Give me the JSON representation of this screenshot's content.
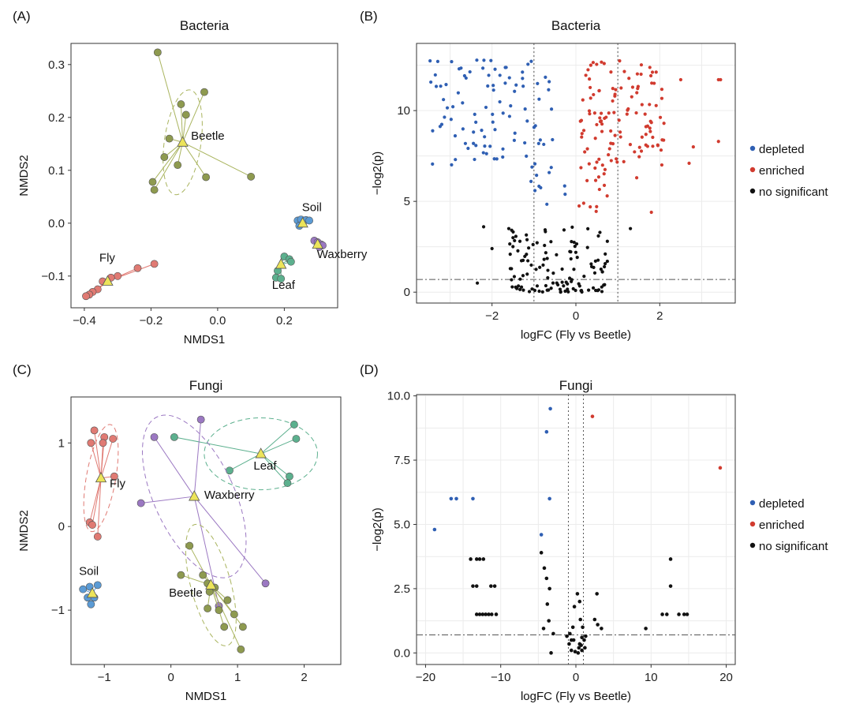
{
  "colors": {
    "beetle": "#8e9a4f",
    "beetle_line": "#a9b45e",
    "fly": "#e07a73",
    "soil": "#5b9bd5",
    "waxberry": "#9b78c2",
    "leaf": "#5cb08e",
    "centroid": "#ece45a",
    "depleted": "#2f5fb3",
    "enriched": "#d13b2f",
    "nosig": "#111111"
  },
  "panels": [
    {
      "id": "A",
      "label": "(A)",
      "chart_data": {
        "type": "scatter",
        "title": "Bacteria",
        "xlabel": "NMDS1",
        "ylabel": "NMDS2",
        "xlim": [
          -0.44,
          0.36
        ],
        "ylim": [
          -0.16,
          0.34
        ],
        "xticks": [
          -0.4,
          -0.2,
          0.0,
          0.2
        ],
        "xtick_labels": [
          "−0.4",
          "−0.2",
          "0.0",
          "0.2"
        ],
        "yticks": [
          -0.1,
          0.0,
          0.1,
          0.2,
          0.3
        ],
        "ytick_labels": [
          "−0.1",
          "0.0",
          "0.1",
          "0.2",
          "0.3"
        ],
        "groups": [
          {
            "name": "Beetle",
            "color_key": "beetle",
            "centroid": [
              -0.105,
              0.153
            ],
            "label_pos": [
              -0.08,
              0.158
            ],
            "ellipse": {
              "rx": 0.055,
              "ry": 0.1,
              "rot": 8
            },
            "points": [
              [
                -0.18,
                0.323
              ],
              [
                -0.11,
                0.225
              ],
              [
                -0.095,
                0.205
              ],
              [
                -0.04,
                0.248
              ],
              [
                -0.145,
                0.16
              ],
              [
                -0.16,
                0.125
              ],
              [
                -0.195,
                0.078
              ],
              [
                -0.19,
                0.063
              ],
              [
                -0.12,
                0.11
              ],
              [
                -0.035,
                0.087
              ],
              [
                0.1,
                0.088
              ]
            ]
          },
          {
            "name": "Fly",
            "color_key": "fly",
            "centroid": [
              -0.33,
              -0.11
            ],
            "label_pos": [
              -0.355,
              -0.073
            ],
            "ellipse": null,
            "points": [
              [
                -0.19,
                -0.077
              ],
              [
                -0.24,
                -0.085
              ],
              [
                -0.3,
                -0.1
              ],
              [
                -0.32,
                -0.103
              ],
              [
                -0.345,
                -0.11
              ],
              [
                -0.36,
                -0.125
              ],
              [
                -0.375,
                -0.13
              ],
              [
                -0.385,
                -0.135
              ],
              [
                -0.395,
                -0.138
              ]
            ]
          },
          {
            "name": "Soil",
            "color_key": "soil",
            "centroid": [
              0.255,
              0.0
            ],
            "label_pos": [
              0.253,
              0.023
            ],
            "ellipse": null,
            "points": [
              [
                0.24,
                0.005
              ],
              [
                0.25,
                0.007
              ],
              [
                0.265,
                0.006
              ],
              [
                0.275,
                0.005
              ],
              [
                0.245,
                -0.005
              ]
            ]
          },
          {
            "name": "Waxberry",
            "color_key": "waxberry",
            "centroid": [
              0.3,
              -0.04
            ],
            "label_pos": [
              0.298,
              -0.066
            ],
            "ellipse": null,
            "points": [
              [
                0.29,
                -0.033
              ],
              [
                0.3,
                -0.036
              ],
              [
                0.31,
                -0.04
              ],
              [
                0.305,
                -0.045
              ],
              [
                0.315,
                -0.042
              ]
            ]
          },
          {
            "name": "Leaf",
            "color_key": "leaf",
            "centroid": [
              0.19,
              -0.078
            ],
            "label_pos": [
              0.163,
              -0.124
            ],
            "ellipse": null,
            "points": [
              [
                0.2,
                -0.063
              ],
              [
                0.215,
                -0.068
              ],
              [
                0.22,
                -0.073
              ],
              [
                0.18,
                -0.09
              ],
              [
                0.175,
                -0.103
              ],
              [
                0.19,
                -0.105
              ]
            ]
          }
        ]
      }
    },
    {
      "id": "B",
      "label": "(B)",
      "chart_data": {
        "type": "scatter",
        "title": "Bacteria",
        "xlabel": "logFC (Fly vs Beetle)",
        "ylabel": "−log2(p)",
        "xlim": [
          -3.8,
          3.8
        ],
        "ylim": [
          -0.6,
          13.7
        ],
        "xticks": [
          -2,
          0,
          2
        ],
        "xtick_labels": [
          "−2",
          "0",
          "2"
        ],
        "yticks": [
          0,
          5,
          10
        ],
        "ytick_labels": [
          "0",
          "5",
          "10"
        ],
        "vlines": [
          -1,
          1
        ],
        "hline": 0.7,
        "legend": [
          "depleted",
          "enriched",
          "no significant"
        ],
        "legend_position": "right"
      }
    },
    {
      "id": "C",
      "label": "(C)",
      "chart_data": {
        "type": "scatter",
        "title": "Fungi",
        "xlabel": "NMDS1",
        "ylabel": "NMDS2",
        "xlim": [
          -1.5,
          2.55
        ],
        "ylim": [
          -1.65,
          1.55
        ],
        "xticks": [
          -1,
          0,
          1,
          2
        ],
        "xtick_labels": [
          "−1",
          "0",
          "1",
          "2"
        ],
        "yticks": [
          -1,
          0,
          1
        ],
        "ytick_labels": [
          "−1",
          "0",
          "1"
        ],
        "groups": [
          {
            "name": "Fly",
            "color_key": "fly",
            "centroid": [
              -1.05,
              0.58
            ],
            "label_pos": [
              -0.92,
              0.47
            ],
            "ellipse": {
              "rx": 0.22,
              "ry": 0.65,
              "rot": 10
            },
            "points": [
              [
                -1.15,
                1.15
              ],
              [
                -1.0,
                1.07
              ],
              [
                -0.87,
                1.05
              ],
              [
                -1.02,
                1.0
              ],
              [
                -1.2,
                1.0
              ],
              [
                -0.85,
                0.6
              ],
              [
                -1.22,
                0.05
              ],
              [
                -1.18,
                0.02
              ],
              [
                -1.1,
                -0.12
              ]
            ]
          },
          {
            "name": "Leaf",
            "color_key": "leaf",
            "centroid": [
              1.35,
              0.87
            ],
            "label_pos": [
              1.24,
              0.68
            ],
            "ellipse": {
              "rx": 0.85,
              "ry": 0.43,
              "rot": 0
            },
            "points": [
              [
                0.05,
                1.07
              ],
              [
                1.85,
                1.22
              ],
              [
                1.88,
                1.05
              ],
              [
                0.88,
                0.67
              ],
              [
                1.78,
                0.6
              ],
              [
                1.75,
                0.52
              ]
            ]
          },
          {
            "name": "Waxberry",
            "color_key": "waxberry",
            "centroid": [
              0.35,
              0.36
            ],
            "label_pos": [
              0.5,
              0.33
            ],
            "ellipse": {
              "rx": 0.6,
              "ry": 1.05,
              "rot": -25
            },
            "points": [
              [
                -0.25,
                1.07
              ],
              [
                0.45,
                1.28
              ],
              [
                -0.45,
                0.28
              ],
              [
                0.72,
                -0.95
              ],
              [
                1.42,
                -0.68
              ]
            ]
          },
          {
            "name": "Beetle",
            "color_key": "beetle",
            "centroid": [
              0.6,
              -0.7
            ],
            "label_pos": [
              -0.03,
              -0.84
            ],
            "ellipse": {
              "rx": 0.3,
              "ry": 0.75,
              "rot": -15
            },
            "points": [
              [
                0.28,
                -0.23
              ],
              [
                0.15,
                -0.58
              ],
              [
                0.48,
                -0.58
              ],
              [
                0.55,
                -0.68
              ],
              [
                0.66,
                -0.73
              ],
              [
                0.58,
                -0.78
              ],
              [
                0.85,
                -0.88
              ],
              [
                0.55,
                -0.98
              ],
              [
                0.72,
                -1.0
              ],
              [
                0.95,
                -1.05
              ],
              [
                0.8,
                -1.2
              ],
              [
                1.08,
                -1.2
              ],
              [
                1.05,
                -1.47
              ]
            ]
          },
          {
            "name": "Soil",
            "color_key": "soil",
            "centroid": [
              -1.18,
              -0.8
            ],
            "label_pos": [
              -1.38,
              -0.58
            ],
            "ellipse": null,
            "points": [
              [
                -1.32,
                -0.75
              ],
              [
                -1.22,
                -0.72
              ],
              [
                -1.1,
                -0.7
              ],
              [
                -1.25,
                -0.85
              ],
              [
                -1.15,
                -0.85
              ],
              [
                -1.2,
                -0.93
              ]
            ]
          }
        ]
      }
    },
    {
      "id": "D",
      "label": "(D)",
      "chart_data": {
        "type": "scatter",
        "title": "Fungi",
        "xlabel": "logFC (Fly vs Beetle)",
        "ylabel": "−log2(p)",
        "xlim": [
          -21.2,
          21.2
        ],
        "ylim": [
          -0.45,
          10.05
        ],
        "xticks": [
          -20,
          -10,
          0,
          10,
          20
        ],
        "xtick_labels": [
          "−20",
          "−10",
          "0",
          "10",
          "20"
        ],
        "yticks": [
          0,
          2.5,
          5,
          7.5,
          10
        ],
        "ytick_labels": [
          "0.0",
          "2.5",
          "5.0",
          "7.5",
          "10.0"
        ],
        "vlines": [
          -1,
          1
        ],
        "hline": 0.7,
        "legend": [
          "depleted",
          "enriched",
          "no significant"
        ],
        "legend_position": "right",
        "series": [
          {
            "name": "depleted",
            "color_key": "depleted",
            "points": [
              [
                -18.8,
                4.8
              ],
              [
                -16.6,
                6.0
              ],
              [
                -15.9,
                6.0
              ],
              [
                -13.7,
                6.0
              ],
              [
                -3.5,
                6.0
              ],
              [
                -3.9,
                8.6
              ],
              [
                -3.4,
                9.5
              ],
              [
                -4.6,
                4.6
              ]
            ]
          },
          {
            "name": "enriched",
            "color_key": "enriched",
            "points": [
              [
                2.2,
                9.2
              ],
              [
                19.2,
                7.2
              ]
            ]
          },
          {
            "name": "no significant",
            "color_key": "nosig",
            "points": [
              [
                -14.0,
                3.65
              ],
              [
                -13.2,
                3.65
              ],
              [
                -12.8,
                3.65
              ],
              [
                -12.3,
                3.65
              ],
              [
                -13.7,
                2.6
              ],
              [
                -13.2,
                2.6
              ],
              [
                -11.3,
                2.6
              ],
              [
                -10.8,
                2.6
              ],
              [
                -13.2,
                1.5
              ],
              [
                -12.8,
                1.5
              ],
              [
                -12.4,
                1.5
              ],
              [
                -12.0,
                1.5
              ],
              [
                -11.6,
                1.5
              ],
              [
                -11.2,
                1.5
              ],
              [
                -10.6,
                1.5
              ],
              [
                -4.6,
                3.9
              ],
              [
                -4.2,
                3.3
              ],
              [
                -3.9,
                2.9
              ],
              [
                -3.5,
                2.5
              ],
              [
                -3.8,
                1.9
              ],
              [
                -3.6,
                1.25
              ],
              [
                -4.3,
                0.95
              ],
              [
                -3.0,
                0.75
              ],
              [
                -3.3,
                0.0
              ],
              [
                -1.2,
                0.65
              ],
              [
                -0.8,
                0.75
              ],
              [
                -0.6,
                0.5
              ],
              [
                -0.9,
                0.35
              ],
              [
                -0.4,
                1.0
              ],
              [
                -0.2,
                1.8
              ],
              [
                -0.3,
                0.5
              ],
              [
                0.2,
                2.3
              ],
              [
                0.5,
                2.0
              ],
              [
                0.6,
                1.3
              ],
              [
                0.9,
                1.0
              ],
              [
                0.8,
                0.6
              ],
              [
                0.5,
                0.35
              ],
              [
                0.7,
                0.3
              ],
              [
                0.4,
                0.2
              ],
              [
                0.8,
                0.1
              ],
              [
                1.2,
                0.2
              ],
              [
                1.1,
                0.5
              ],
              [
                1.3,
                0.65
              ],
              [
                -0.6,
                0.1
              ],
              [
                -0.1,
                0.05
              ],
              [
                0.3,
                0.0
              ],
              [
                2.8,
                2.3
              ],
              [
                2.5,
                1.3
              ],
              [
                2.9,
                1.1
              ],
              [
                3.4,
                0.95
              ],
              [
                9.3,
                0.95
              ],
              [
                11.5,
                1.5
              ],
              [
                12.1,
                1.5
              ],
              [
                12.6,
                2.6
              ],
              [
                12.6,
                3.65
              ],
              [
                13.7,
                1.5
              ],
              [
                14.4,
                1.5
              ],
              [
                14.8,
                1.5
              ]
            ]
          }
        ]
      }
    }
  ]
}
